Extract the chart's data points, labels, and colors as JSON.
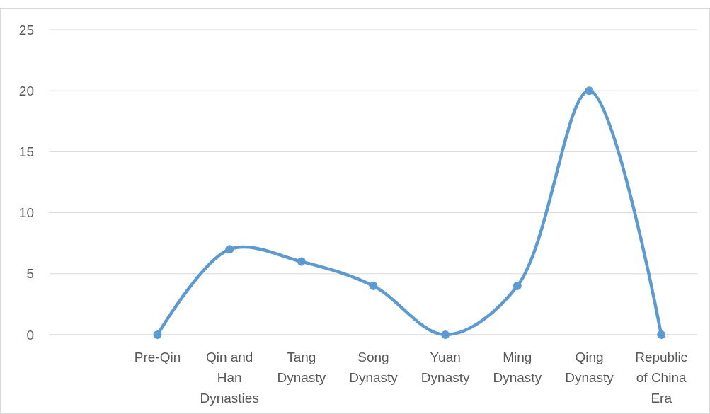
{
  "chart_data": {
    "type": "line",
    "categories": [
      null,
      "Pre-Qin",
      "Qin and Han Dynasties",
      "Tang Dynasty",
      "Song Dynasty",
      "Yuan Dynasty",
      "Ming Dynasty",
      "Qing Dynasty",
      "Republic of China Era"
    ],
    "series": [
      {
        "color": "#5b9bd5",
        "values": [
          null,
          0,
          7,
          6,
          4,
          0,
          4,
          20,
          0
        ]
      }
    ],
    "ylim": [
      0,
      25
    ],
    "yticks": [
      0,
      5,
      10,
      15,
      20,
      25
    ],
    "grid": "y",
    "marker": "circle"
  }
}
